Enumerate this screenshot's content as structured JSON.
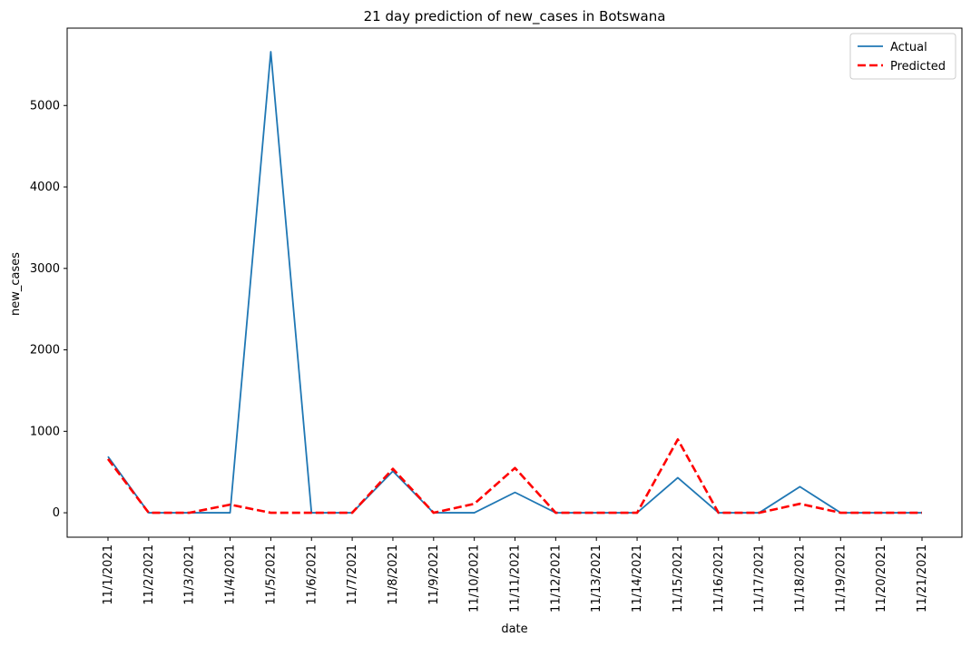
{
  "chart_data": {
    "type": "line",
    "title": "21 day prediction of new_cases in Botswana",
    "xlabel": "date",
    "ylabel": "new_cases",
    "categories": [
      "11/1/2021",
      "11/2/2021",
      "11/3/2021",
      "11/4/2021",
      "11/5/2021",
      "11/6/2021",
      "11/7/2021",
      "11/8/2021",
      "11/9/2021",
      "11/10/2021",
      "11/11/2021",
      "11/12/2021",
      "11/13/2021",
      "11/14/2021",
      "11/15/2021",
      "11/16/2021",
      "11/17/2021",
      "11/18/2021",
      "11/19/2021",
      "11/20/2021",
      "11/21/2021"
    ],
    "ylim": [
      -300,
      5950
    ],
    "yticks": [
      0,
      1000,
      2000,
      3000,
      4000,
      5000
    ],
    "grid": false,
    "legend_position": "top-right",
    "series": [
      {
        "name": "Actual",
        "color": "#1f77b4",
        "style": "solid",
        "values": [
          690,
          0,
          0,
          0,
          5660,
          0,
          0,
          510,
          0,
          0,
          250,
          0,
          0,
          0,
          430,
          0,
          0,
          320,
          0,
          0,
          0
        ]
      },
      {
        "name": "Predicted",
        "color": "#ff0000",
        "style": "dashed",
        "values": [
          660,
          0,
          0,
          100,
          0,
          0,
          0,
          540,
          0,
          110,
          550,
          0,
          0,
          0,
          900,
          0,
          0,
          110,
          0,
          0,
          0
        ]
      }
    ]
  }
}
